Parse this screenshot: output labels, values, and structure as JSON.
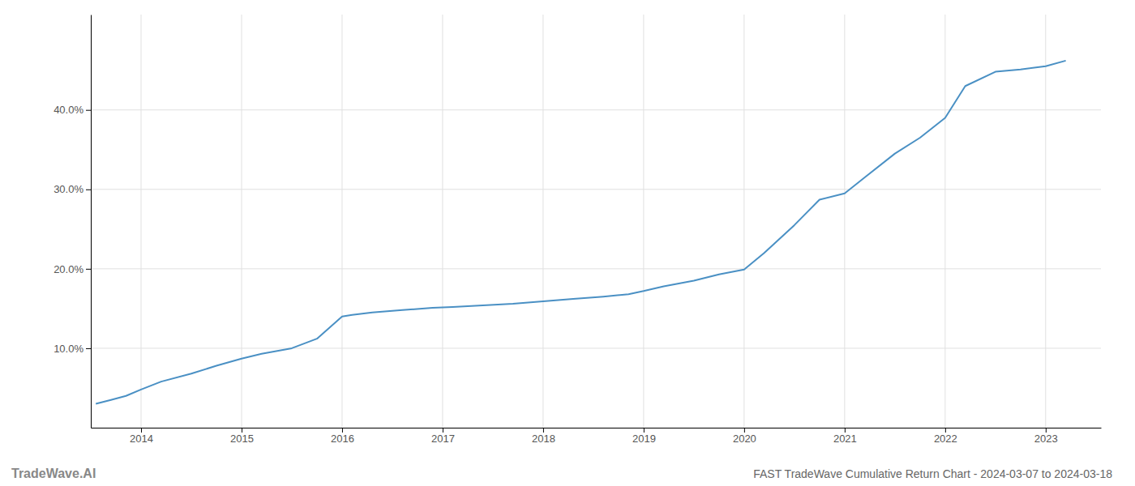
{
  "chart_data": {
    "type": "line",
    "title": "FAST TradeWave Cumulative Return Chart - 2024-03-07 to 2024-03-18",
    "annotations": [
      "TradeWave.AI"
    ],
    "x": [
      2013.55,
      2013.7,
      2013.85,
      2014.0,
      2014.2,
      2014.5,
      2014.75,
      2015.0,
      2015.2,
      2015.5,
      2015.75,
      2016.0,
      2016.1,
      2016.3,
      2016.6,
      2016.9,
      2017.1,
      2017.4,
      2017.7,
      2017.9,
      2018.1,
      2018.3,
      2018.6,
      2018.85,
      2019.0,
      2019.2,
      2019.5,
      2019.75,
      2020.0,
      2020.2,
      2020.5,
      2020.75,
      2021.0,
      2021.2,
      2021.5,
      2021.75,
      2022.0,
      2022.2,
      2022.5,
      2022.75,
      2023.0,
      2023.2
    ],
    "values": [
      0.03,
      0.035,
      0.04,
      0.048,
      0.058,
      0.068,
      0.078,
      0.087,
      0.093,
      0.1,
      0.112,
      0.14,
      0.142,
      0.145,
      0.148,
      0.151,
      0.152,
      0.154,
      0.156,
      0.158,
      0.16,
      0.162,
      0.165,
      0.168,
      0.172,
      0.178,
      0.185,
      0.193,
      0.199,
      0.22,
      0.255,
      0.287,
      0.295,
      0.315,
      0.345,
      0.365,
      0.39,
      0.43,
      0.448,
      0.451,
      0.455,
      0.462
    ],
    "color": "#4a90c4",
    "xlim": [
      2013.5,
      2023.55
    ],
    "ylim": [
      0.0,
      0.52
    ],
    "xticks": [
      2014,
      2015,
      2016,
      2017,
      2018,
      2019,
      2020,
      2021,
      2022,
      2023
    ],
    "yticks": [
      {
        "value": 0.1,
        "label": "10.0%"
      },
      {
        "value": 0.2,
        "label": "20.0%"
      },
      {
        "value": 0.3,
        "label": "30.0%"
      },
      {
        "value": 0.4,
        "label": "40.0%"
      }
    ],
    "grid": true
  }
}
